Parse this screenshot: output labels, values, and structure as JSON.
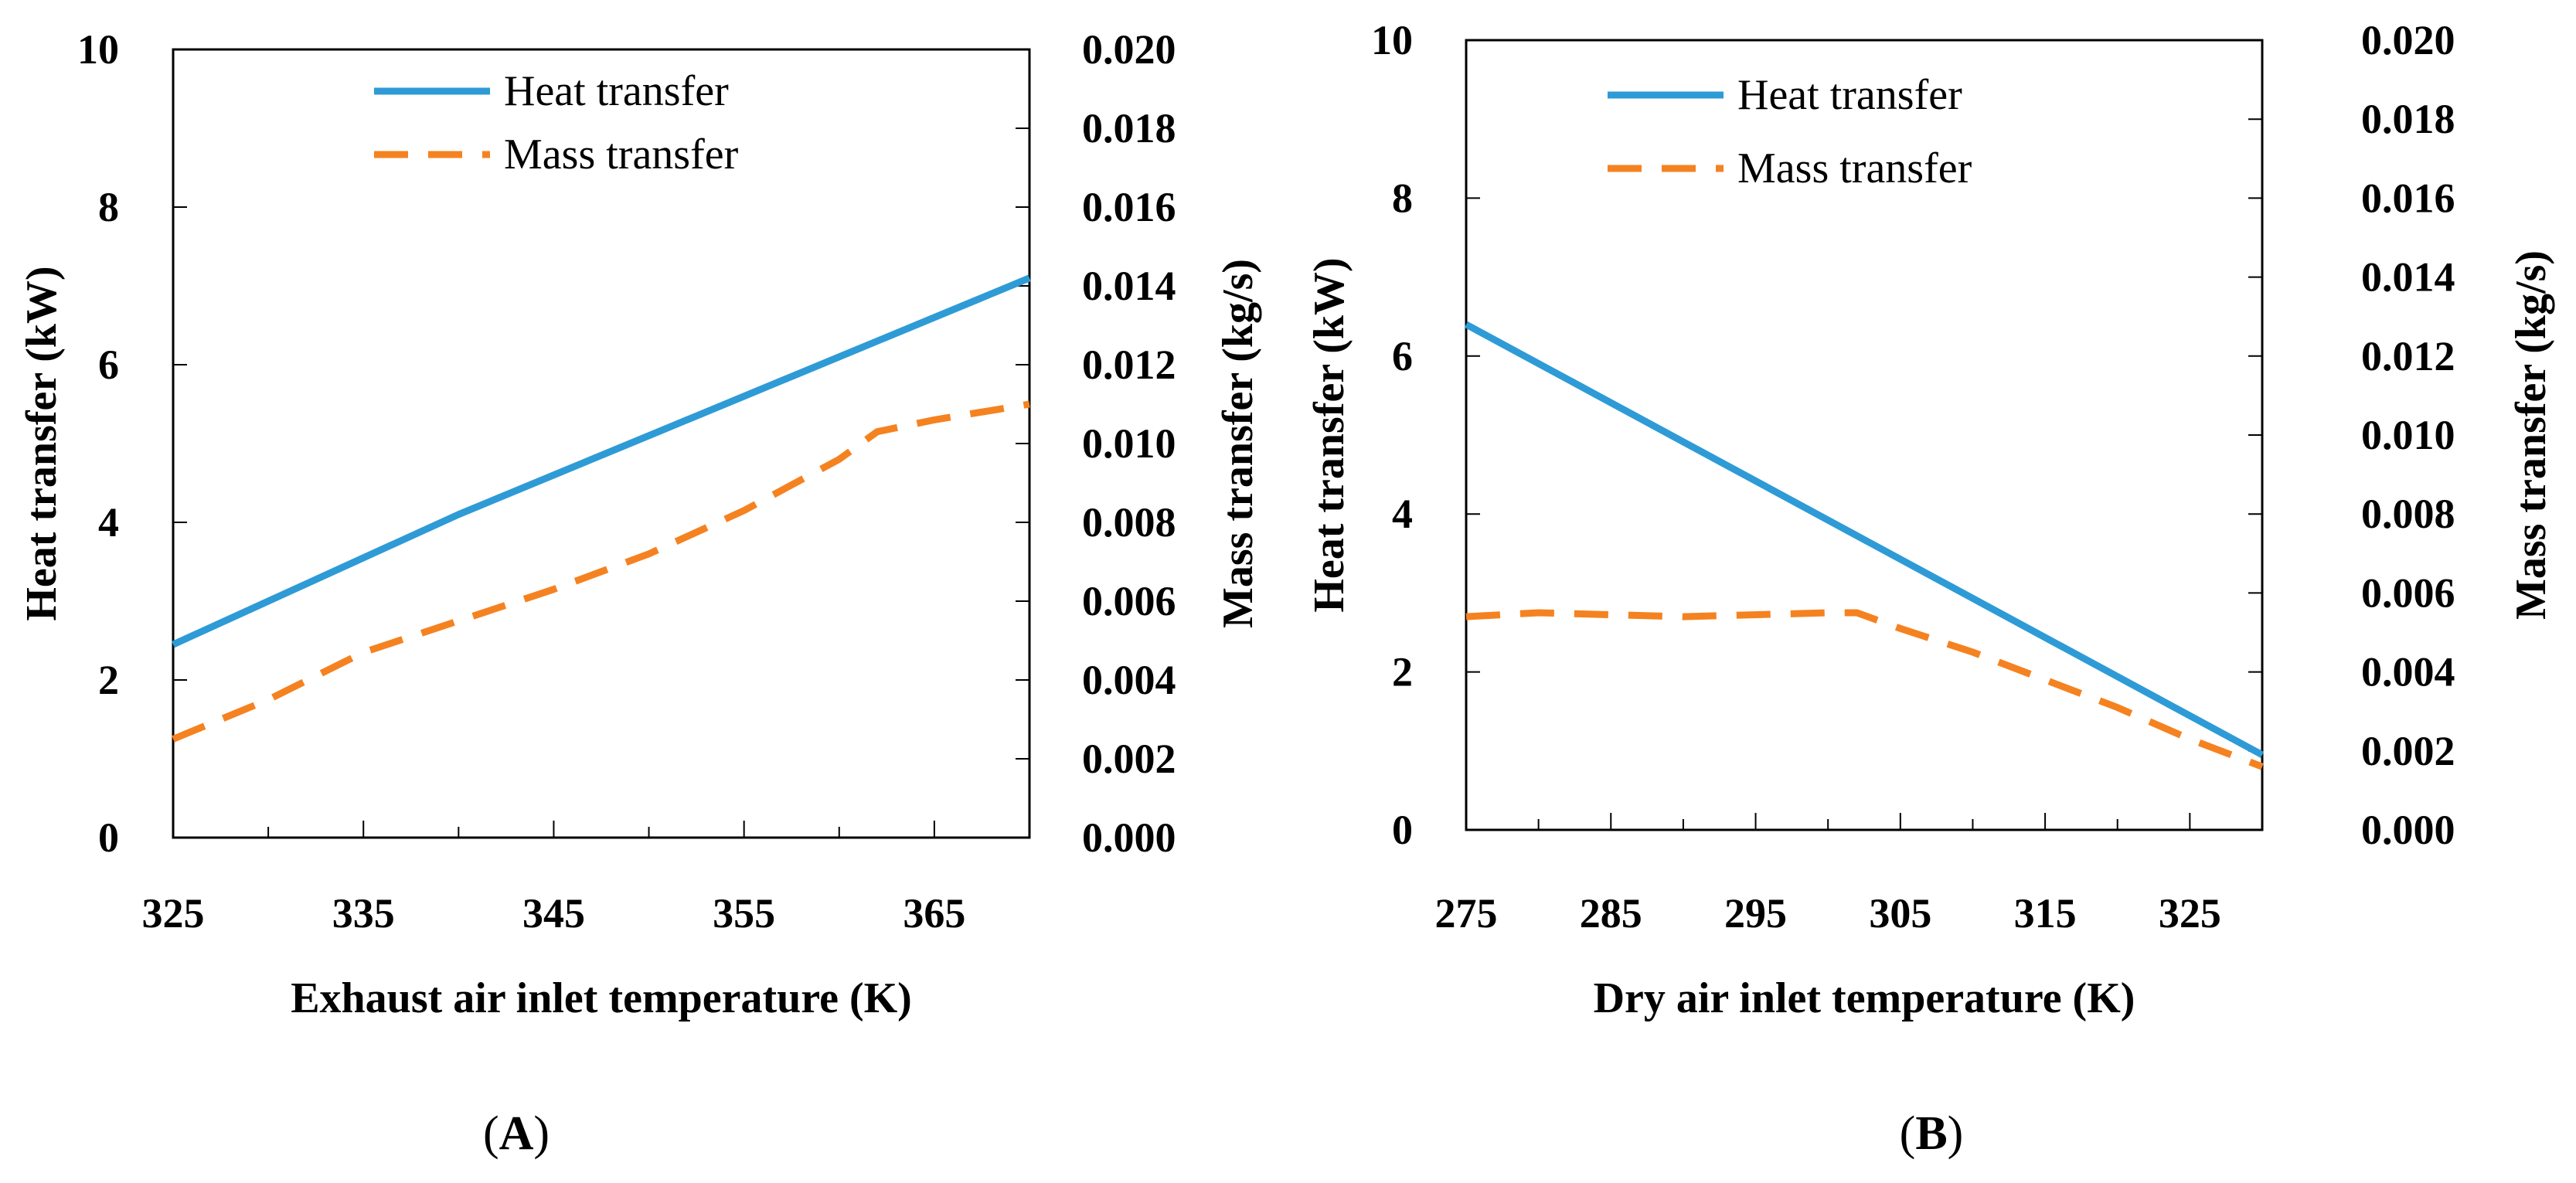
{
  "chart_data": [
    {
      "panel": "A",
      "panel_label_bold": "A",
      "type": "line",
      "xlabel": "Exhaust air inlet temperature (K)",
      "ylabel_left": "Heat transfer (kW)",
      "ylabel_right": "Mass transfer (kg/s)",
      "xlim": [
        325,
        370
      ],
      "ylim_left": [
        0,
        10
      ],
      "ylim_right": [
        0,
        0.02
      ],
      "x_ticks": [
        325,
        335,
        345,
        355,
        365
      ],
      "y_ticks_left": [
        "0",
        "2",
        "4",
        "6",
        "8",
        "10"
      ],
      "y_ticks_right": [
        "0.000",
        "0.002",
        "0.004",
        "0.006",
        "0.008",
        "0.010",
        "0.012",
        "0.014",
        "0.016",
        "0.018",
        "0.020"
      ],
      "legend": [
        "Heat transfer",
        "Mass transfer"
      ],
      "series": [
        {
          "name": "Heat transfer",
          "axis": "left",
          "style": "solid",
          "color": "#2E9BD6",
          "x": [
            325,
            330,
            335,
            340,
            345,
            350,
            355,
            360,
            365,
            370
          ],
          "y": [
            2.45,
            3.0,
            3.55,
            4.1,
            4.6,
            5.1,
            5.6,
            6.1,
            6.6,
            7.1
          ]
        },
        {
          "name": "Mass transfer",
          "axis": "right",
          "style": "dashed",
          "color": "#F58220",
          "x": [
            325,
            330,
            335,
            340,
            345,
            350,
            355,
            360,
            362,
            365,
            370
          ],
          "y": [
            0.0025,
            0.0035,
            0.0047,
            0.0055,
            0.0063,
            0.0072,
            0.0083,
            0.0096,
            0.0103,
            0.0106,
            0.011
          ]
        }
      ]
    },
    {
      "panel": "B",
      "panel_label_bold": "B",
      "type": "line",
      "xlabel": "Dry air inlet temperature (K)",
      "ylabel_left": "Heat transfer (kW)",
      "ylabel_right": "Mass transfer (kg/s)",
      "xlim": [
        275,
        330
      ],
      "ylim_left": [
        0,
        10
      ],
      "ylim_right": [
        0,
        0.02
      ],
      "x_ticks": [
        275,
        285,
        295,
        305,
        315,
        325
      ],
      "y_ticks_left": [
        "0",
        "2",
        "4",
        "6",
        "8",
        "10"
      ],
      "y_ticks_right": [
        "0.000",
        "0.002",
        "0.004",
        "0.006",
        "0.008",
        "0.010",
        "0.012",
        "0.014",
        "0.016",
        "0.018",
        "0.020"
      ],
      "legend": [
        "Heat transfer",
        "Mass transfer"
      ],
      "series": [
        {
          "name": "Heat transfer",
          "axis": "left",
          "style": "solid",
          "color": "#2E9BD6",
          "x": [
            275,
            330
          ],
          "y": [
            6.4,
            0.95
          ]
        },
        {
          "name": "Mass transfer",
          "axis": "right",
          "style": "dashed",
          "color": "#F58220",
          "x": [
            275,
            280,
            290,
            300,
            302,
            305,
            310,
            315,
            320,
            325,
            330
          ],
          "y": [
            0.0054,
            0.0055,
            0.0054,
            0.0055,
            0.0055,
            0.0051,
            0.0045,
            0.0038,
            0.0031,
            0.0023,
            0.0016
          ]
        }
      ]
    }
  ],
  "figure_labels": [
    {
      "open": "(",
      "bold": "A",
      "close": ")"
    },
    {
      "open": "(",
      "bold": "B",
      "close": ")"
    }
  ]
}
